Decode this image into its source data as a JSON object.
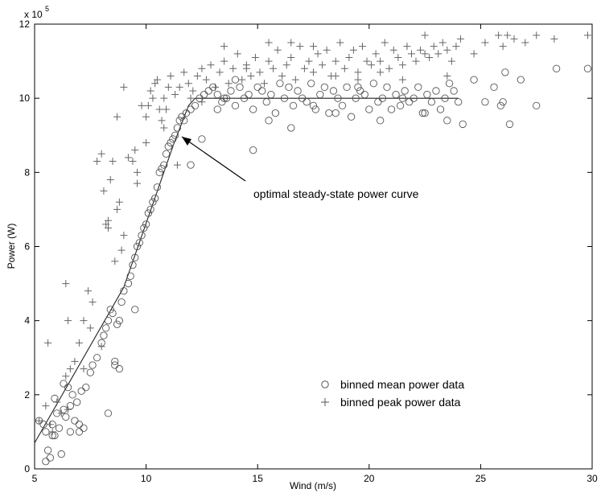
{
  "chart_data": {
    "type": "scatter",
    "xlabel": "Wind (m/s)",
    "ylabel": "Power (W)",
    "xlim": [
      5,
      30
    ],
    "ylim": [
      0,
      12
    ],
    "y_multiplier_label": "x 10",
    "y_multiplier_exponent": "5",
    "x_ticks": [
      5,
      10,
      15,
      20,
      25,
      30
    ],
    "y_ticks": [
      0,
      2,
      4,
      6,
      8,
      10,
      12
    ],
    "grid": false,
    "legend_position": "lower-right",
    "annotation": {
      "text": "optimal steady-state power curve",
      "arrow_to": [
        11.3,
        8.3
      ]
    },
    "curve": {
      "x": [
        5.0,
        9.0,
        11.2,
        11.9,
        12.2,
        24.0
      ],
      "y": [
        0.7,
        4.9,
        8.7,
        9.8,
        10.0,
        10.0
      ]
    },
    "series": [
      {
        "name": "binned mean power data",
        "marker": "o",
        "x": [
          5.2,
          5.4,
          5.5,
          5.6,
          5.7,
          5.8,
          5.8,
          5.9,
          6.0,
          6.1,
          6.2,
          6.3,
          6.4,
          6.5,
          6.6,
          6.7,
          6.8,
          6.9,
          7.0,
          7.1,
          7.2,
          7.3,
          7.5,
          7.6,
          7.8,
          8.0,
          8.1,
          8.2,
          8.3,
          8.4,
          8.5,
          8.6,
          8.7,
          8.8,
          8.9,
          9.0,
          9.2,
          9.3,
          9.4,
          9.5,
          9.6,
          9.7,
          9.8,
          9.9,
          10.0,
          10.1,
          10.2,
          10.3,
          10.4,
          10.5,
          10.6,
          10.7,
          10.8,
          10.9,
          11.0,
          11.1,
          11.2,
          11.3,
          11.4,
          11.5,
          11.6,
          11.7,
          11.8,
          12.0,
          12.2,
          12.4,
          12.6,
          12.8,
          13.0,
          13.2,
          13.4,
          13.6,
          13.8,
          14.0,
          14.2,
          14.4,
          14.6,
          14.8,
          15.0,
          15.2,
          15.4,
          15.6,
          15.8,
          16.0,
          16.2,
          16.4,
          16.6,
          16.8,
          17.0,
          17.2,
          17.4,
          17.6,
          17.8,
          18.0,
          18.2,
          18.4,
          18.6,
          18.8,
          19.0,
          19.2,
          19.4,
          19.6,
          19.8,
          20.0,
          20.2,
          20.4,
          20.6,
          20.8,
          21.0,
          21.2,
          21.4,
          21.6,
          21.8,
          22.0,
          22.2,
          22.4,
          22.6,
          22.8,
          23.0,
          23.2,
          23.4,
          23.6,
          23.8,
          24.0,
          24.2,
          24.7,
          25.2,
          25.6,
          25.9,
          26.0,
          26.1,
          26.3,
          26.8,
          27.5,
          28.4,
          29.8,
          5.5,
          5.9,
          6.3,
          6.6,
          7.0,
          8.3,
          8.6,
          8.8,
          9.5,
          12.0,
          12.5,
          14.8,
          13.2,
          13.5,
          14.0,
          15.5,
          16.5,
          17.5,
          18.5,
          19.5,
          20.5,
          21.5,
          22.5,
          23.5
        ],
        "y": [
          1.3,
          1.2,
          1.0,
          0.5,
          0.3,
          1.2,
          0.9,
          1.9,
          1.5,
          1.1,
          0.4,
          1.6,
          1.4,
          2.2,
          1.0,
          2.0,
          1.3,
          1.8,
          1.2,
          2.1,
          1.1,
          2.2,
          2.6,
          2.8,
          3.0,
          3.4,
          3.6,
          3.8,
          4.0,
          4.3,
          4.2,
          2.9,
          3.9,
          4.0,
          4.5,
          4.8,
          5.0,
          5.2,
          5.5,
          5.7,
          6.0,
          6.1,
          6.3,
          6.5,
          6.6,
          6.9,
          7.0,
          7.2,
          7.3,
          7.6,
          8.0,
          8.1,
          8.2,
          8.5,
          8.7,
          8.8,
          8.9,
          9.0,
          9.2,
          9.4,
          9.5,
          9.4,
          9.6,
          9.7,
          9.8,
          10.0,
          10.1,
          10.2,
          10.3,
          10.1,
          9.9,
          10.0,
          10.2,
          9.8,
          10.3,
          10.0,
          10.1,
          9.7,
          10.3,
          10.2,
          9.9,
          10.1,
          9.6,
          10.4,
          10.0,
          10.3,
          9.8,
          10.2,
          10.0,
          9.9,
          10.4,
          9.7,
          10.1,
          10.3,
          9.6,
          10.2,
          10.0,
          9.8,
          10.3,
          9.5,
          10.0,
          10.2,
          10.1,
          9.7,
          10.4,
          9.9,
          10.0,
          10.3,
          9.7,
          10.1,
          9.8,
          10.2,
          9.9,
          10.0,
          10.3,
          9.6,
          10.1,
          9.9,
          10.2,
          9.7,
          10.0,
          10.4,
          10.2,
          9.9,
          9.3,
          10.5,
          9.9,
          10.3,
          9.8,
          9.9,
          10.7,
          9.3,
          10.5,
          9.8,
          10.8,
          10.8,
          0.2,
          0.9,
          2.3,
          1.7,
          1.0,
          1.5,
          2.8,
          2.7,
          4.3,
          8.2,
          8.9,
          8.6,
          9.7,
          10.0,
          10.5,
          9.4,
          9.2,
          9.8,
          9.6,
          10.3,
          9.4,
          10.0,
          9.6,
          9.4
        ]
      },
      {
        "name": "binned peak power data",
        "marker": "+",
        "x": [
          5.2,
          5.5,
          5.7,
          5.8,
          6.0,
          6.2,
          6.4,
          6.5,
          6.6,
          6.8,
          7.0,
          7.2,
          7.4,
          7.5,
          7.6,
          7.8,
          8.0,
          8.1,
          8.2,
          8.3,
          8.4,
          8.5,
          8.6,
          8.7,
          8.8,
          8.9,
          9.0,
          9.2,
          9.4,
          9.5,
          9.6,
          9.8,
          10.0,
          10.1,
          10.2,
          10.3,
          10.4,
          10.5,
          10.6,
          10.7,
          10.8,
          10.9,
          11.0,
          11.1,
          11.3,
          11.5,
          11.7,
          11.9,
          12.1,
          12.3,
          12.5,
          12.7,
          12.9,
          13.1,
          13.3,
          13.5,
          13.7,
          13.9,
          14.1,
          14.3,
          14.5,
          14.7,
          14.9,
          15.1,
          15.3,
          15.5,
          15.7,
          15.9,
          16.1,
          16.3,
          16.5,
          16.7,
          16.9,
          17.1,
          17.3,
          17.5,
          17.7,
          17.9,
          18.1,
          18.3,
          18.5,
          18.7,
          18.9,
          19.1,
          19.3,
          19.5,
          19.7,
          19.9,
          20.1,
          20.3,
          20.5,
          20.7,
          20.9,
          21.1,
          21.3,
          21.5,
          21.7,
          21.9,
          22.1,
          22.3,
          22.5,
          22.7,
          22.9,
          23.1,
          23.3,
          23.5,
          23.7,
          23.9,
          24.1,
          24.7,
          25.2,
          25.8,
          26.0,
          26.2,
          26.5,
          27.0,
          27.5,
          28.3,
          29.8,
          5.6,
          6.4,
          6.5,
          7.2,
          8.0,
          8.3,
          8.7,
          9.0,
          9.6,
          10.0,
          10.8,
          11.4,
          12.0,
          12.5,
          13.5,
          14.5,
          15.5,
          16.5,
          17.5,
          18.5,
          19.5,
          20.5,
          21.5,
          22.5,
          23.5
        ],
        "y": [
          1.3,
          1.7,
          1.2,
          1.0,
          1.8,
          1.5,
          2.5,
          1.6,
          2.7,
          2.9,
          3.4,
          4.0,
          4.8,
          3.8,
          4.5,
          8.3,
          8.5,
          7.5,
          6.6,
          6.5,
          7.8,
          8.3,
          5.6,
          7.0,
          7.2,
          5.9,
          6.3,
          8.4,
          8.3,
          8.6,
          8.0,
          9.8,
          9.5,
          9.8,
          10.2,
          10.0,
          10.4,
          10.5,
          9.7,
          9.4,
          10.0,
          9.7,
          10.3,
          10.6,
          10.1,
          10.3,
          10.7,
          10.4,
          10.2,
          10.6,
          10.8,
          10.5,
          10.9,
          10.3,
          10.7,
          11.0,
          10.4,
          10.8,
          11.2,
          10.5,
          10.9,
          10.6,
          11.1,
          10.7,
          10.4,
          11.0,
          10.8,
          11.3,
          10.6,
          10.9,
          11.1,
          10.5,
          11.4,
          10.8,
          11.0,
          10.7,
          11.2,
          10.9,
          11.3,
          10.6,
          11.0,
          11.5,
          10.8,
          11.1,
          11.3,
          10.7,
          11.4,
          11.0,
          10.9,
          11.2,
          11.0,
          11.5,
          10.8,
          11.3,
          11.1,
          10.9,
          11.4,
          11.2,
          11.0,
          11.3,
          11.7,
          11.1,
          11.4,
          11.2,
          11.5,
          11.3,
          11.0,
          11.4,
          11.6,
          11.2,
          11.5,
          11.7,
          11.4,
          11.7,
          11.6,
          11.5,
          11.7,
          11.6,
          11.7,
          3.4,
          5.0,
          4.0,
          2.7,
          3.3,
          6.7,
          9.5,
          10.3,
          7.7,
          8.8,
          9.2,
          8.2,
          10.0,
          9.9,
          11.4,
          10.8,
          11.5,
          11.5,
          11.4,
          10.6,
          10.5,
          10.7,
          10.5,
          11.2,
          10.6
        ]
      }
    ]
  }
}
